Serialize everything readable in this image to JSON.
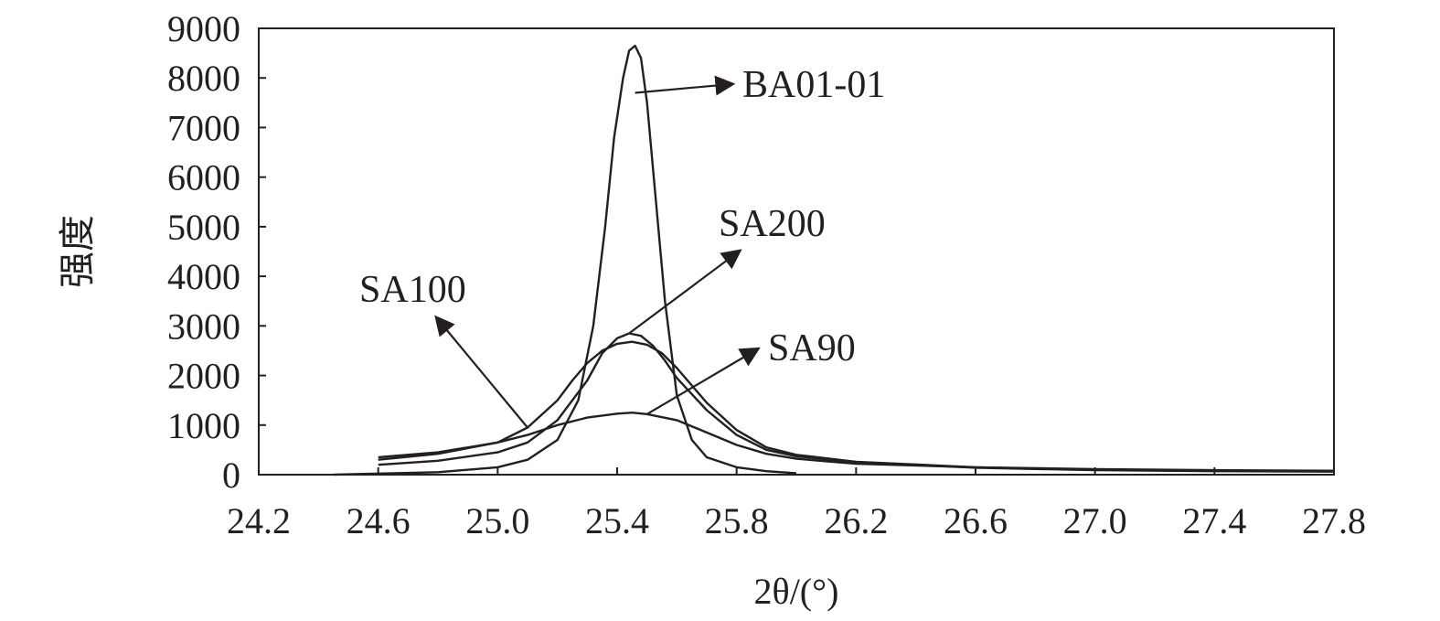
{
  "chart_data": {
    "type": "line",
    "xlabel": "2θ/(°)",
    "ylabel": "强度",
    "xlim": [
      24.2,
      27.8
    ],
    "ylim": [
      0,
      9000
    ],
    "xticks": [
      "24.2",
      "24.6",
      "25.0",
      "25.4",
      "25.8",
      "26.2",
      "26.6",
      "27.0",
      "27.4",
      "27.8"
    ],
    "yticks": [
      "0",
      "1000",
      "2000",
      "3000",
      "4000",
      "5000",
      "6000",
      "7000",
      "8000",
      "9000"
    ],
    "grid": false,
    "colors": {
      "line": "#231f20",
      "background": "#ffffff"
    },
    "series": [
      {
        "name": "BA01-01",
        "x": [
          24.45,
          24.8,
          25.0,
          25.1,
          25.2,
          25.27,
          25.32,
          25.36,
          25.39,
          25.42,
          25.44,
          25.46,
          25.48,
          25.5,
          25.53,
          25.56,
          25.6,
          25.65,
          25.7,
          25.8,
          25.9,
          26.0
        ],
        "y": [
          0,
          50,
          150,
          300,
          700,
          1500,
          3000,
          5000,
          6800,
          8000,
          8550,
          8650,
          8400,
          7500,
          5500,
          3500,
          1600,
          700,
          350,
          150,
          70,
          30
        ]
      },
      {
        "name": "SA200",
        "x": [
          24.6,
          24.8,
          25.0,
          25.1,
          25.2,
          25.3,
          25.35,
          25.4,
          25.44,
          25.48,
          25.52,
          25.56,
          25.6,
          25.7,
          25.8,
          25.9,
          26.0,
          26.2,
          26.6,
          27.0,
          27.4,
          27.8
        ],
        "y": [
          200,
          280,
          450,
          650,
          1100,
          1900,
          2450,
          2750,
          2850,
          2800,
          2600,
          2300,
          1950,
          1300,
          800,
          500,
          370,
          250,
          140,
          90,
          70,
          60
        ]
      },
      {
        "name": "SA100",
        "x": [
          24.6,
          24.8,
          25.0,
          25.1,
          25.2,
          25.25,
          25.3,
          25.35,
          25.4,
          25.45,
          25.5,
          25.55,
          25.6,
          25.7,
          25.8,
          25.9,
          26.0,
          26.2,
          26.6,
          27.0,
          27.4,
          27.8
        ],
        "y": [
          300,
          420,
          650,
          950,
          1500,
          1900,
          2250,
          2500,
          2640,
          2680,
          2620,
          2450,
          2150,
          1450,
          900,
          550,
          400,
          260,
          150,
          100,
          80,
          70
        ]
      },
      {
        "name": "SA90",
        "x": [
          24.6,
          24.8,
          25.0,
          25.1,
          25.2,
          25.3,
          25.4,
          25.45,
          25.5,
          25.6,
          25.7,
          25.8,
          25.9,
          26.0,
          26.2,
          26.6,
          27.0,
          27.4,
          27.8
        ],
        "y": [
          350,
          450,
          650,
          800,
          1000,
          1150,
          1230,
          1250,
          1220,
          1100,
          850,
          600,
          420,
          320,
          220,
          150,
          110,
          90,
          80
        ]
      }
    ],
    "annotations": [
      {
        "text": "BA01-01",
        "target_x": 25.46,
        "target_y": 7700
      },
      {
        "text": "SA200",
        "target_x": 25.44,
        "target_y": 2850
      },
      {
        "text": "SA100",
        "target_x": 25.1,
        "target_y": 950
      },
      {
        "text": "SA90",
        "target_x": 25.5,
        "target_y": 1220
      }
    ]
  }
}
